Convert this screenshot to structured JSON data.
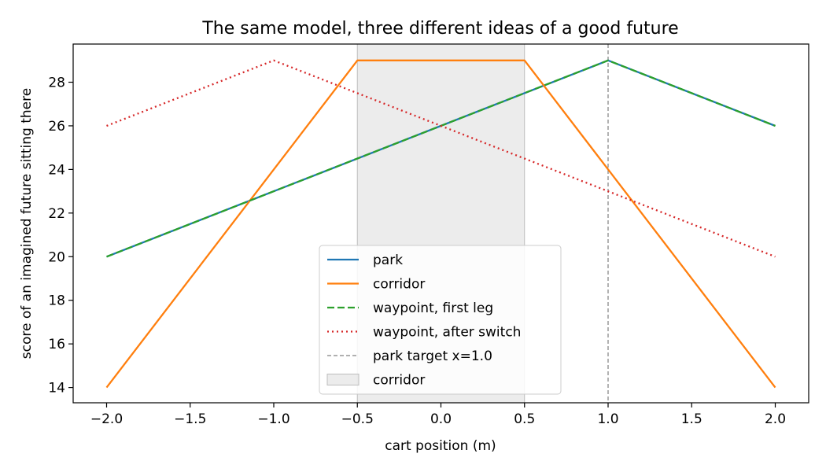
{
  "chart_data": {
    "type": "line",
    "title": "The same model, three different ideas of a good future",
    "xlabel": "cart position (m)",
    "ylabel": "score of an imagined future sitting there",
    "xlim": [
      -2.2,
      2.2
    ],
    "ylim": [
      13.3,
      29.75
    ],
    "xticks": [
      -2.0,
      -1.5,
      -1.0,
      -0.5,
      0.0,
      0.5,
      1.0,
      1.5,
      2.0
    ],
    "xtick_labels": [
      "−2.0",
      "−1.5",
      "−1.0",
      "−0.5",
      "0.0",
      "0.5",
      "1.0",
      "1.5",
      "2.0"
    ],
    "yticks": [
      14,
      16,
      18,
      20,
      22,
      24,
      26,
      28
    ],
    "ytick_labels": [
      "14",
      "16",
      "18",
      "20",
      "22",
      "24",
      "26",
      "28"
    ],
    "grid": false,
    "legend_position": "lower-center",
    "series": [
      {
        "name": "park",
        "color": "#1f77b4",
        "style": "solid",
        "x": [
          -2.0,
          1.0,
          2.0
        ],
        "y": [
          20,
          29,
          26
        ]
      },
      {
        "name": "corridor",
        "color": "#ff7f0e",
        "style": "solid",
        "x": [
          -2.0,
          -0.5,
          0.5,
          2.0
        ],
        "y": [
          14,
          29,
          29,
          14
        ]
      },
      {
        "name": "waypoint, first leg",
        "color": "#2ca02c",
        "style": "dashed",
        "x": [
          -2.0,
          1.0,
          2.0
        ],
        "y": [
          20,
          29,
          26
        ]
      },
      {
        "name": "waypoint, after switch",
        "color": "#d62728",
        "style": "dotted",
        "x": [
          -2.0,
          -1.0,
          2.0
        ],
        "y": [
          26,
          29,
          20
        ]
      }
    ],
    "reference_lines": [
      {
        "name": "park target x=1.0",
        "x": 1.0,
        "color": "#808080",
        "style": "dashed"
      }
    ],
    "shaded_regions": [
      {
        "name": "corridor",
        "x0": -0.5,
        "x1": 0.5,
        "color": "#d9d9d9"
      }
    ]
  }
}
